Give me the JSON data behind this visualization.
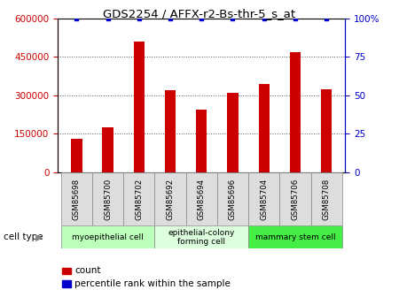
{
  "title": "GDS2254 / AFFX-r2-Bs-thr-5_s_at",
  "samples": [
    "GSM85698",
    "GSM85700",
    "GSM85702",
    "GSM85692",
    "GSM85694",
    "GSM85696",
    "GSM85704",
    "GSM85706",
    "GSM85708"
  ],
  "counts": [
    130000,
    175000,
    510000,
    320000,
    245000,
    308000,
    345000,
    468000,
    325000
  ],
  "percentile_ranks": [
    100,
    100,
    100,
    100,
    100,
    100,
    100,
    100,
    100
  ],
  "cell_types": [
    {
      "label": "myoepithelial cell",
      "start": 0,
      "end": 3,
      "color": "#bbffbb"
    },
    {
      "label": "epithelial-colony\nforming cell",
      "start": 3,
      "end": 6,
      "color": "#ddffdd"
    },
    {
      "label": "mammary stem cell",
      "start": 6,
      "end": 9,
      "color": "#44ee44"
    }
  ],
  "bar_color": "#cc0000",
  "dot_color": "#0000cc",
  "left_axis_color": "#cc0000",
  "right_axis_color": "#0000cc",
  "ylim_left": [
    0,
    600000
  ],
  "ylim_right": [
    0,
    100
  ],
  "left_yticks": [
    0,
    150000,
    300000,
    450000,
    600000
  ],
  "right_yticks": [
    0,
    25,
    50,
    75,
    100
  ],
  "right_yticklabels": [
    "0",
    "25",
    "50",
    "75",
    "100%"
  ],
  "grid_color": "#555555",
  "tick_bg_color": "#dddddd",
  "legend_items": [
    {
      "label": "count",
      "color": "#cc0000"
    },
    {
      "label": "percentile rank within the sample",
      "color": "#0000cc"
    }
  ]
}
